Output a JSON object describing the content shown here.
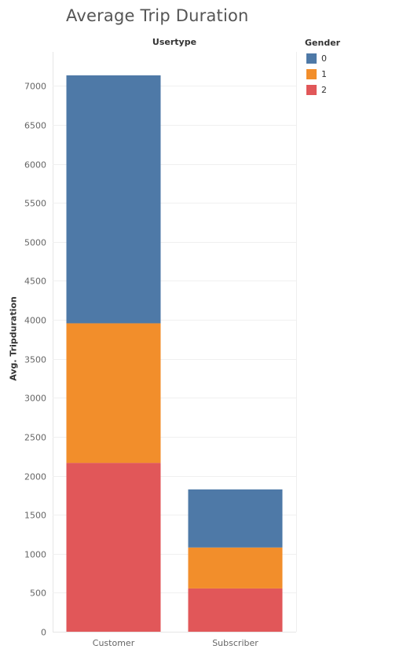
{
  "chart_data": {
    "type": "bar",
    "stacked": true,
    "title": "Average Trip Duration",
    "column_header": "Usertype",
    "xlabel": "",
    "ylabel": "Avg. Tripduration",
    "categories": [
      "Customer",
      "Subscriber"
    ],
    "legend_title": "Gender",
    "legend_position": "top-right",
    "series": [
      {
        "name": "2",
        "values": [
          2165,
          555
        ],
        "color": "#e15759"
      },
      {
        "name": "1",
        "values": [
          1790,
          525
        ],
        "color": "#f28e2b"
      },
      {
        "name": "0",
        "values": [
          3180,
          745
        ],
        "color": "#4e79a7"
      }
    ],
    "legend_order": [
      "0",
      "1",
      "2"
    ],
    "ylim": [
      0,
      7250
    ],
    "yticks": [
      0,
      500,
      1000,
      1500,
      2000,
      2500,
      3000,
      3500,
      4000,
      4500,
      5000,
      5500,
      6000,
      6500,
      7000
    ],
    "grid": true
  }
}
